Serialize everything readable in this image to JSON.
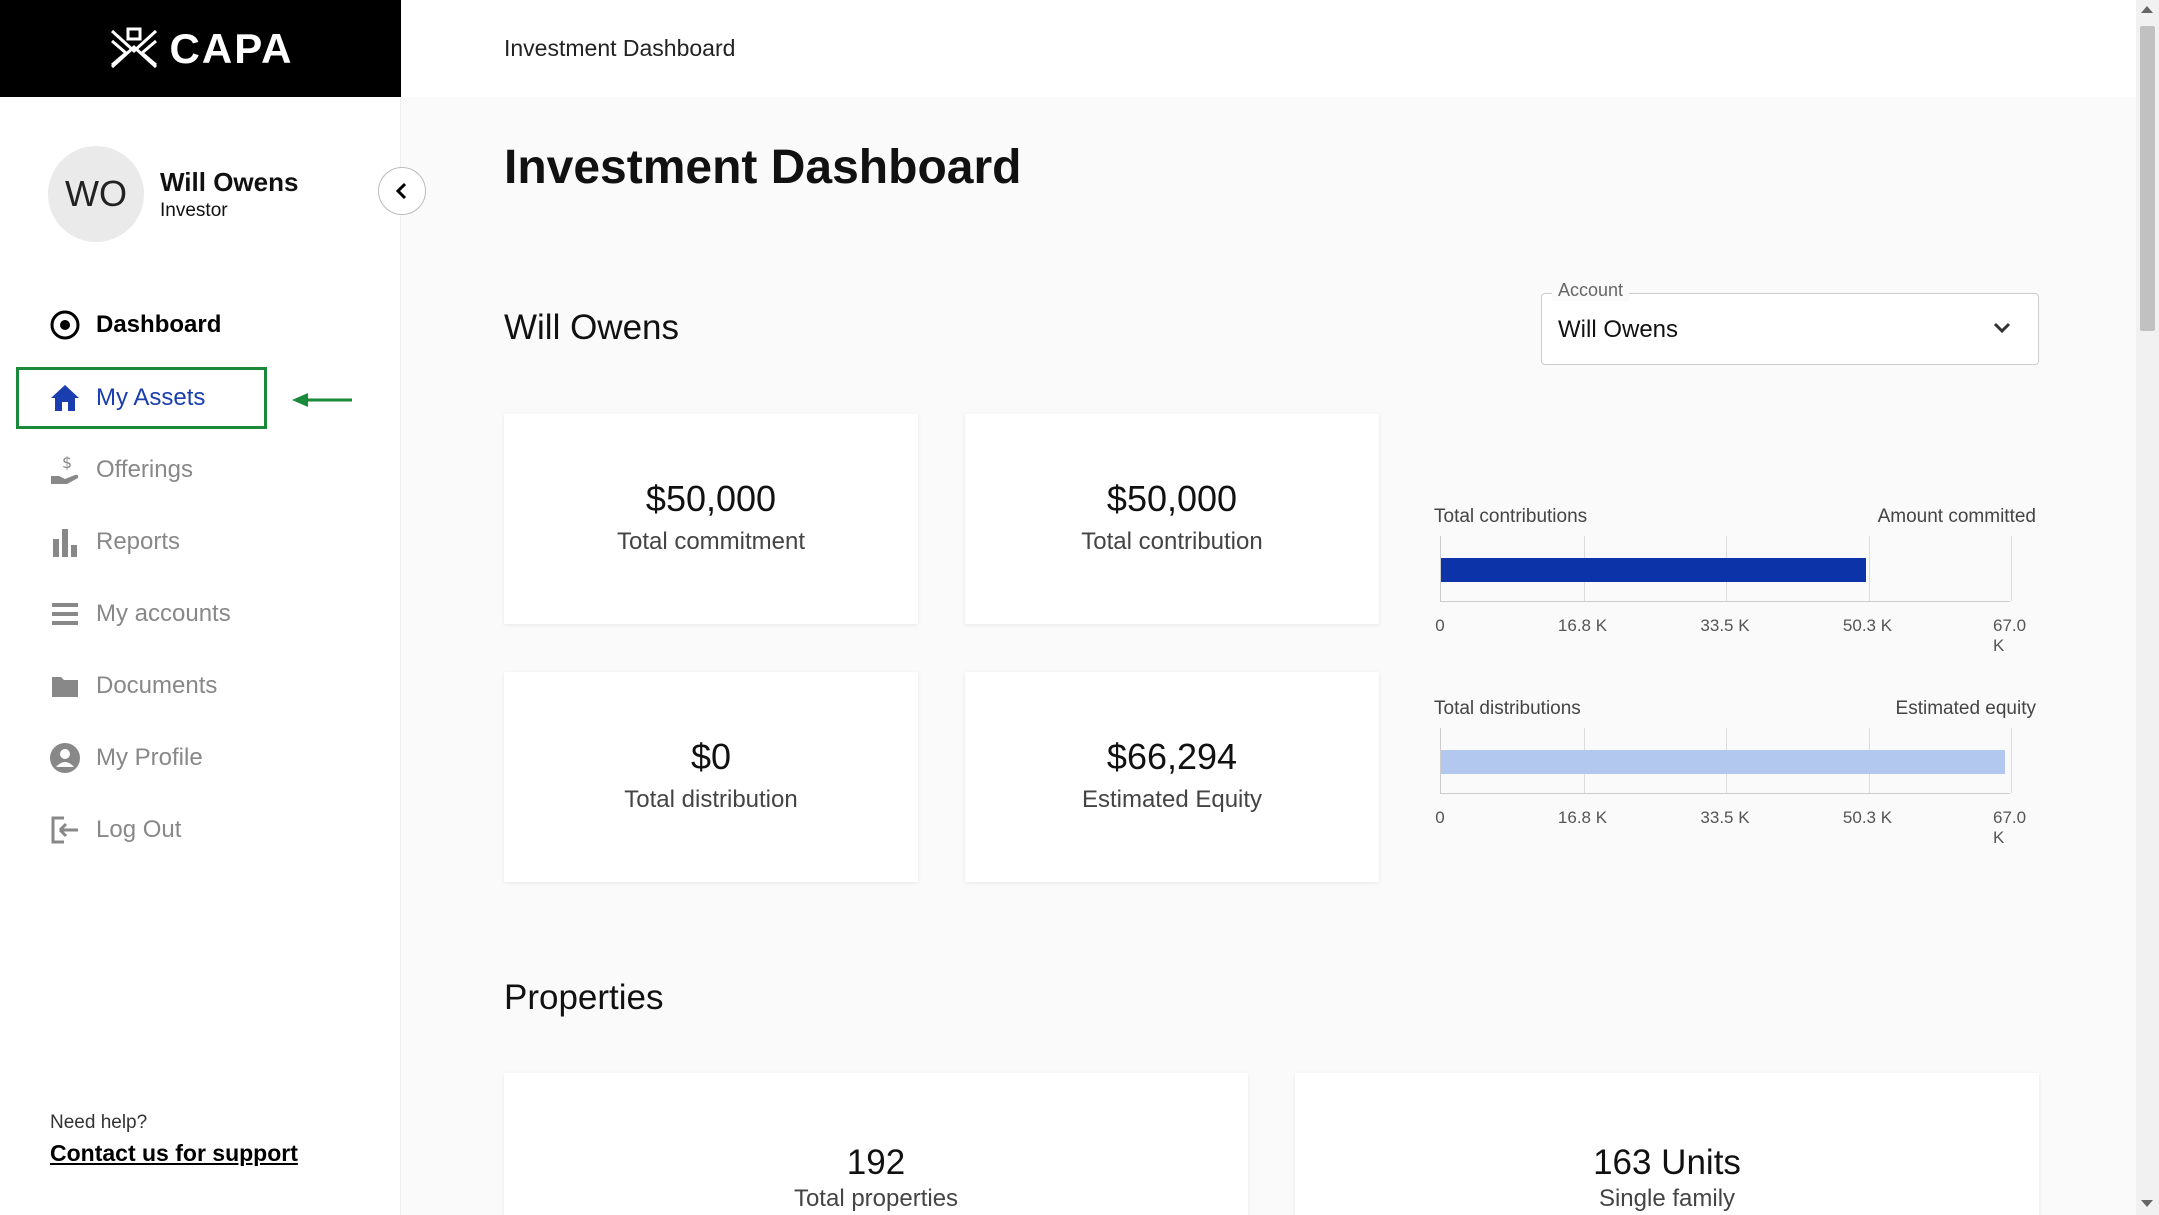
{
  "brand": {
    "name": "CAPA"
  },
  "user": {
    "initials": "WO",
    "name": "Will Owens",
    "role": "Investor"
  },
  "nav": {
    "dashboard": "Dashboard",
    "my_assets": "My Assets",
    "offerings": "Offerings",
    "reports": "Reports",
    "my_accounts": "My accounts",
    "documents": "Documents",
    "my_profile": "My Profile",
    "log_out": "Log Out"
  },
  "help": {
    "label": "Need help?",
    "link": "Contact us for support"
  },
  "topbar": {
    "title": "Investment Dashboard"
  },
  "page": {
    "title": "Investment Dashboard",
    "account_name": "Will Owens"
  },
  "account_select": {
    "label": "Account",
    "value": "Will Owens"
  },
  "stats": {
    "total_commitment": {
      "value": "$50,000",
      "label": "Total commitment"
    },
    "total_contribution": {
      "value": "$50,000",
      "label": "Total contribution"
    },
    "total_distribution": {
      "value": "$0",
      "label": "Total distribution"
    },
    "estimated_equity": {
      "value": "$66,294",
      "label": "Estimated Equity"
    }
  },
  "charts": {
    "contributions": {
      "left_label": "Total contributions",
      "right_label": "Amount committed"
    },
    "distributions": {
      "left_label": "Total distributions",
      "right_label": "Estimated equity"
    }
  },
  "chart_data": [
    {
      "type": "bar",
      "orientation": "horizontal",
      "categories": [
        "Total contributions"
      ],
      "values": [
        50000
      ],
      "xlim": [
        0,
        67000
      ],
      "ticks": [
        "0",
        "16.8 K",
        "33.5 K",
        "50.3 K",
        "67.0 K"
      ],
      "left_label": "Total contributions",
      "right_label": "Amount committed",
      "color": "#0d33a8",
      "grid": true
    },
    {
      "type": "bar",
      "orientation": "horizontal",
      "categories": [
        "Estimated equity"
      ],
      "values": [
        66294
      ],
      "xlim": [
        0,
        67000
      ],
      "ticks": [
        "0",
        "16.8 K",
        "33.5 K",
        "50.3 K",
        "67.0 K"
      ],
      "left_label": "Total distributions",
      "right_label": "Estimated equity",
      "color": "#b3c8ee",
      "grid": true
    }
  ],
  "properties": {
    "title": "Properties",
    "total": {
      "value": "192",
      "label": "Total properties"
    },
    "single_family": {
      "value": "163 Units",
      "label": "Single family"
    }
  },
  "colors": {
    "accent": "#1a3eb0",
    "highlight": "#1a8a3a",
    "bar_dark": "#0d33a8",
    "bar_light": "#b3c8ee"
  }
}
